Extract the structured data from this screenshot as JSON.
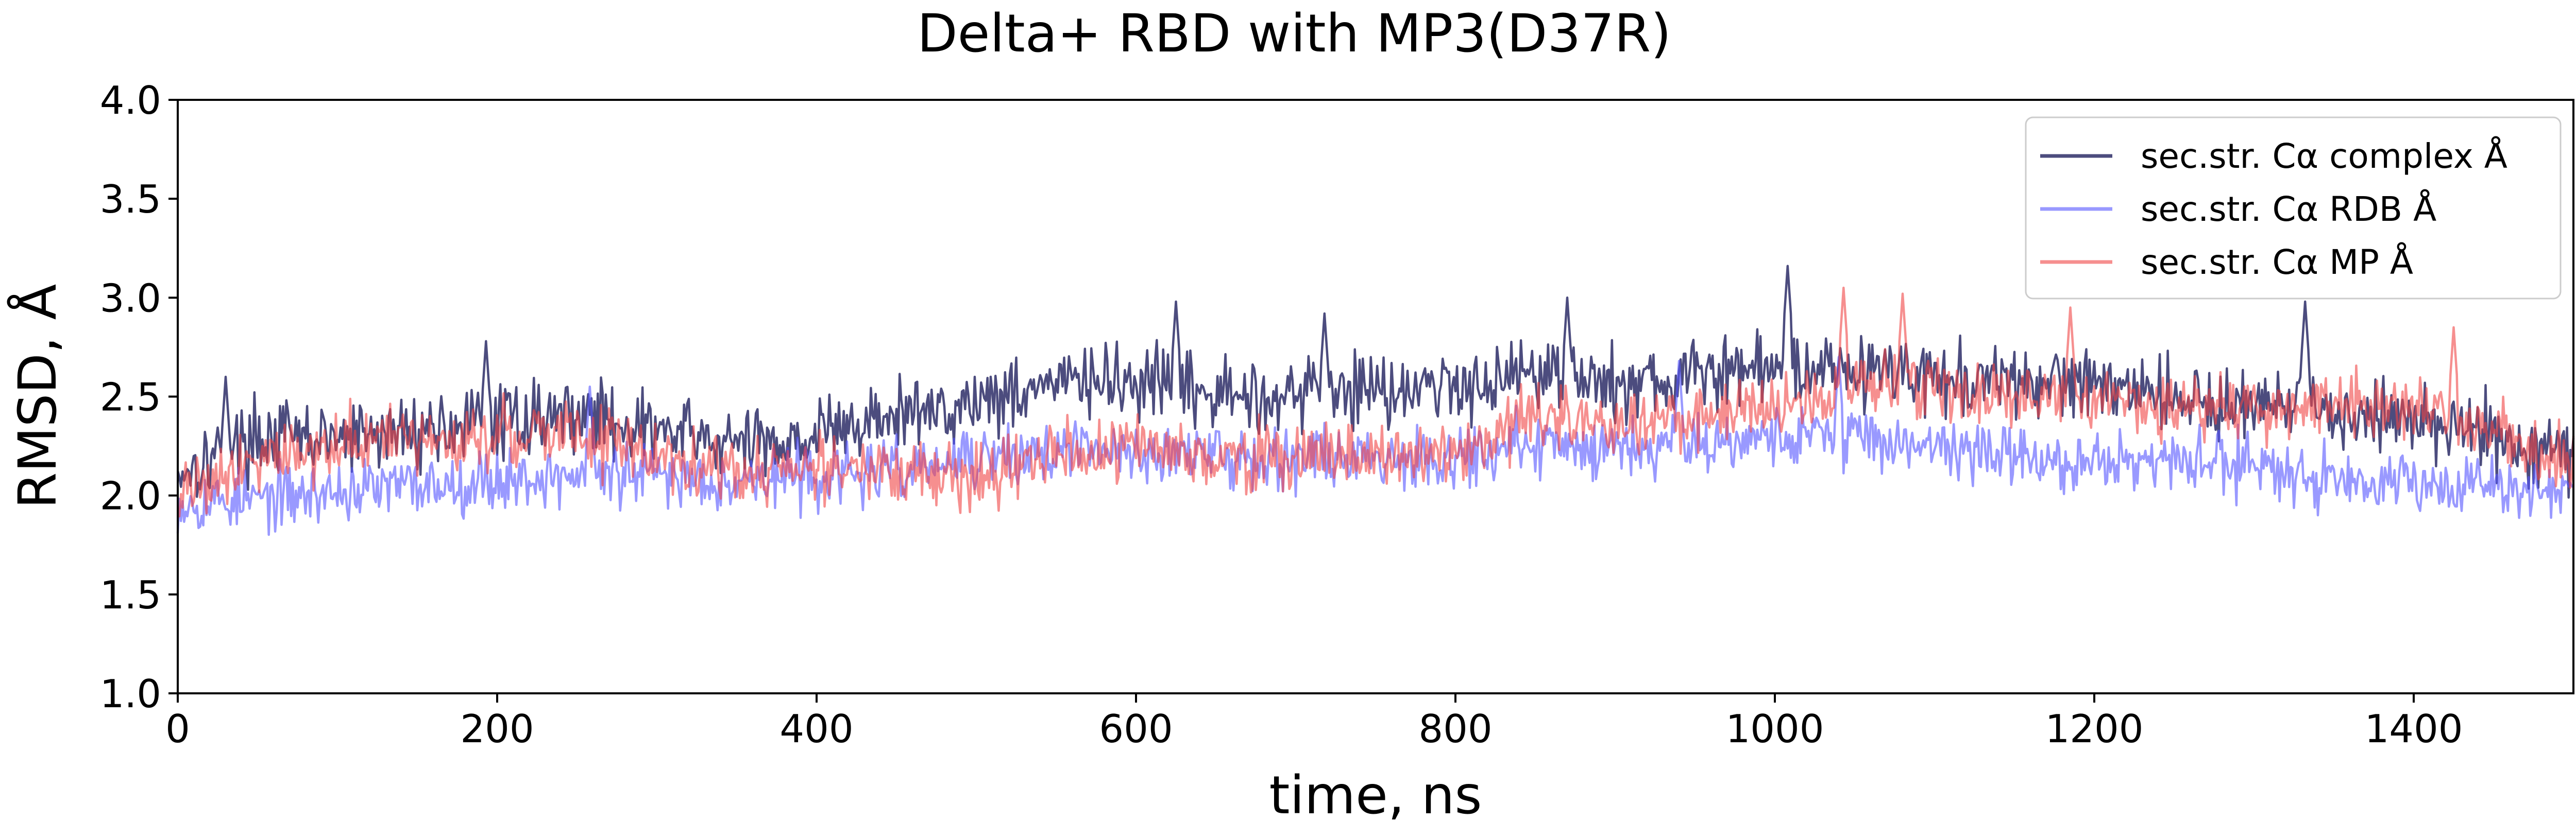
{
  "chart_data": {
    "type": "line",
    "title": "Delta+ RBD with MP3(D37R)",
    "xlabel": "time, ns",
    "ylabel": "RMSD, Å",
    "xlim": [
      0,
      1500
    ],
    "ylim": [
      1.0,
      4.0
    ],
    "xticks": [
      "0",
      "200",
      "400",
      "600",
      "800",
      "1000",
      "1200",
      "1400"
    ],
    "yticks": [
      "1.0",
      "1.5",
      "2.0",
      "2.5",
      "3.0",
      "3.5",
      "4.0"
    ],
    "legend_position": "top-right",
    "grid": false,
    "x": [
      0,
      50,
      100,
      150,
      200,
      250,
      300,
      350,
      400,
      450,
      500,
      550,
      600,
      650,
      700,
      750,
      800,
      850,
      900,
      950,
      1000,
      1050,
      1100,
      1150,
      1200,
      1250,
      1300,
      1350,
      1400,
      1450,
      1500
    ],
    "series": [
      {
        "name": "sec.str. Cα complex Å",
        "color": "#1f1f5e",
        "values": [
          2.12,
          2.3,
          2.28,
          2.33,
          2.38,
          2.42,
          2.33,
          2.25,
          2.31,
          2.4,
          2.48,
          2.58,
          2.56,
          2.5,
          2.52,
          2.55,
          2.55,
          2.65,
          2.55,
          2.6,
          2.65,
          2.65,
          2.6,
          2.55,
          2.6,
          2.5,
          2.45,
          2.42,
          2.4,
          2.3,
          2.2
        ],
        "peaks": [
          [
            30,
            2.6
          ],
          [
            193,
            2.78
          ],
          [
            625,
            2.98
          ],
          [
            718,
            2.92
          ],
          [
            870,
            3.0
          ],
          [
            1008,
            3.16
          ],
          [
            1332,
            2.98
          ]
        ]
      },
      {
        "name": "sec.str. Cα RDB Å",
        "color": "#5555ff",
        "values": [
          1.97,
          1.98,
          2.02,
          2.05,
          2.08,
          2.1,
          2.1,
          2.08,
          2.1,
          2.12,
          2.18,
          2.22,
          2.22,
          2.2,
          2.2,
          2.2,
          2.2,
          2.25,
          2.25,
          2.28,
          2.3,
          2.3,
          2.25,
          2.2,
          2.15,
          2.18,
          2.15,
          2.1,
          2.08,
          2.05,
          2.02
        ],
        "peaks": [
          [
            258,
            2.55
          ],
          [
            940,
            2.68
          ],
          [
            1040,
            2.7
          ]
        ]
      },
      {
        "name": "sec.str. Cα MP Å",
        "color": "#f04545",
        "values": [
          2.02,
          2.2,
          2.25,
          2.28,
          2.3,
          2.32,
          2.2,
          2.12,
          2.15,
          2.1,
          2.1,
          2.2,
          2.25,
          2.2,
          2.2,
          2.2,
          2.2,
          2.4,
          2.35,
          2.4,
          2.45,
          2.55,
          2.55,
          2.5,
          2.5,
          2.45,
          2.45,
          2.45,
          2.45,
          2.3,
          2.15
        ],
        "peaks": [
          [
            1043,
            3.05
          ],
          [
            1080,
            3.02
          ],
          [
            1185,
            2.95
          ],
          [
            1425,
            2.85
          ]
        ]
      }
    ]
  }
}
